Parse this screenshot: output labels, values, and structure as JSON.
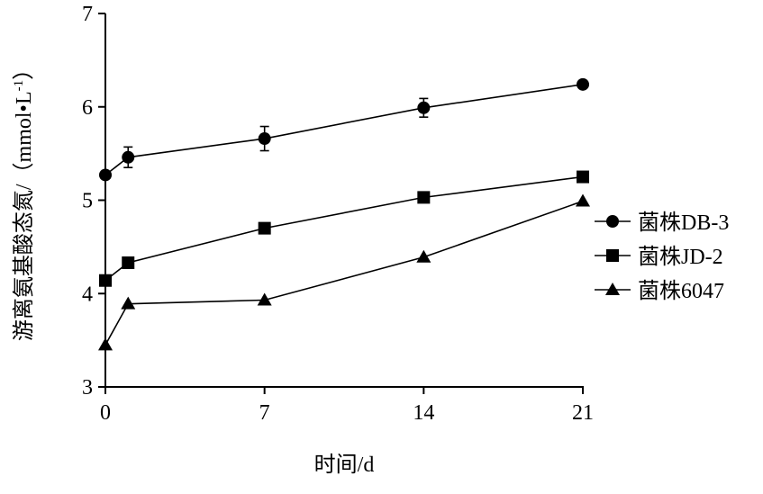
{
  "chart_data": {
    "type": "line",
    "title": "",
    "xlabel": "时间/d",
    "ylabel": "游离氨基酸态氮/（mmol•L",
    "ylabel_sup": "-1",
    "ylabel_close": "）",
    "x": [
      0,
      1,
      7,
      14,
      21
    ],
    "xticks": [
      0,
      7,
      14,
      21
    ],
    "xlim": [
      0,
      21
    ],
    "yticks": [
      3,
      4,
      5,
      6,
      7
    ],
    "ylim": [
      3,
      7
    ],
    "grid": false,
    "legend_position": "right",
    "series": [
      {
        "name": "菌株DB-3",
        "marker": "circle",
        "values": [
          5.27,
          5.46,
          5.66,
          5.99,
          6.24
        ],
        "error": [
          0.0,
          0.11,
          0.13,
          0.1,
          0.0
        ]
      },
      {
        "name": "菌株JD-2",
        "marker": "square",
        "values": [
          4.14,
          4.33,
          4.7,
          5.03,
          5.25
        ],
        "error": [
          0,
          0,
          0,
          0,
          0
        ]
      },
      {
        "name": "菌株6047",
        "marker": "triangle",
        "values": [
          3.45,
          3.89,
          3.93,
          4.39,
          4.99
        ],
        "error": [
          0,
          0,
          0,
          0,
          0
        ]
      }
    ]
  }
}
